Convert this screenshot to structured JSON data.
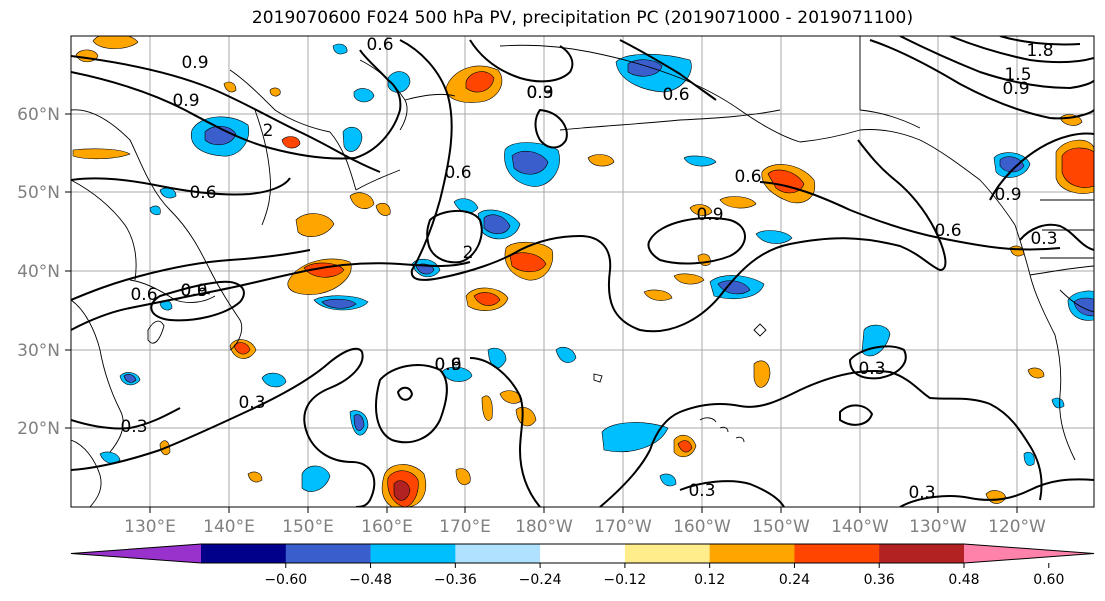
{
  "title": "2019070600 F024 500 hPa PV, precipitation PC (2019071000 - 2019071100)",
  "lat_labels": [
    "60°N",
    "50°N",
    "40°N",
    "30°N",
    "20°N"
  ],
  "lon_labels": [
    "130°E",
    "140°E",
    "150°E",
    "160°E",
    "170°E",
    "180°W",
    "170°W",
    "160°W",
    "150°W",
    "140°W",
    "130°W",
    "120°W"
  ],
  "contour_labels": [
    "0.9",
    "0.6",
    "0.9",
    "2",
    "0.6",
    "0.6",
    "0.9",
    "0.6",
    "0.3",
    "0.6",
    "1.8",
    "1.5",
    "0.9",
    "0.6",
    "0.9",
    "0.3",
    "2",
    "0.9",
    "0.6",
    "0.6",
    "0.9",
    "0.9",
    "0.3",
    "0.6",
    "0.3",
    "0.3",
    "0.3",
    "0.3"
  ],
  "colorbar": {
    "colors": [
      "#9932cc",
      "#00008b",
      "#3a5fcd",
      "#00bfff",
      "#b0e2ff",
      "#ffffff",
      "#ffec8b",
      "#ffa500",
      "#ff4500",
      "#b22222",
      "#ff82ab"
    ],
    "tick_labels": [
      "−0.60",
      "−0.48",
      "−0.36",
      "−0.24",
      "−0.12",
      "0.12",
      "0.24",
      "0.36",
      "0.48",
      "0.60"
    ]
  },
  "colors": {
    "contour": "#000000",
    "coast": "#000000",
    "grid": "#a9a9a9",
    "axis_label": "#808080"
  }
}
